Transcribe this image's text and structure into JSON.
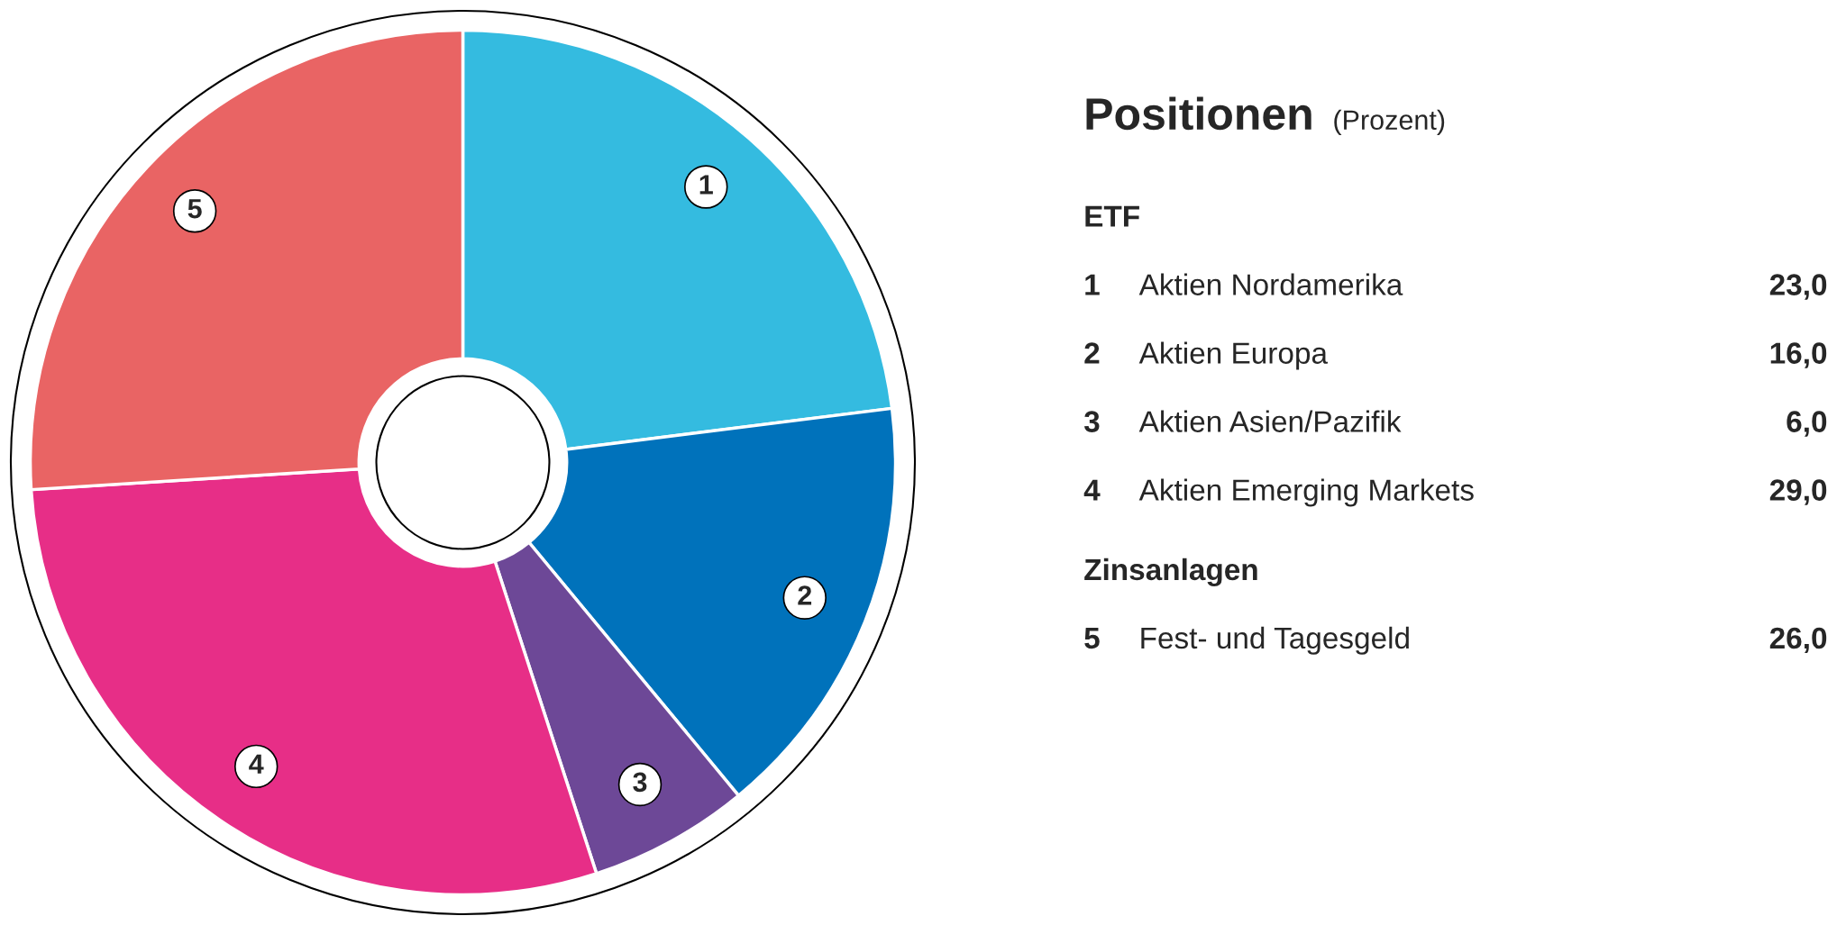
{
  "chart_data": {
    "type": "donut",
    "title": "Positionen",
    "subtitle": "(Prozent)",
    "categories": [
      "1",
      "2",
      "3",
      "4",
      "5"
    ],
    "values": [
      23.0,
      16.0,
      6.0,
      29.0,
      26.0
    ],
    "colors": [
      "#34bbe0",
      "#0072bb",
      "#6d4897",
      "#e72e87",
      "#e96464"
    ],
    "annotations": [
      "ETF",
      "Aktien Nordamerika",
      "23,0",
      "Aktien Europa",
      "16,0",
      "Aktien Asien/Pazifik",
      "6,0",
      "Aktien Emerging Markets",
      "29,0",
      "Zinsanlagen",
      "Fest- und Tagesgeld",
      "26,0"
    ]
  }
}
